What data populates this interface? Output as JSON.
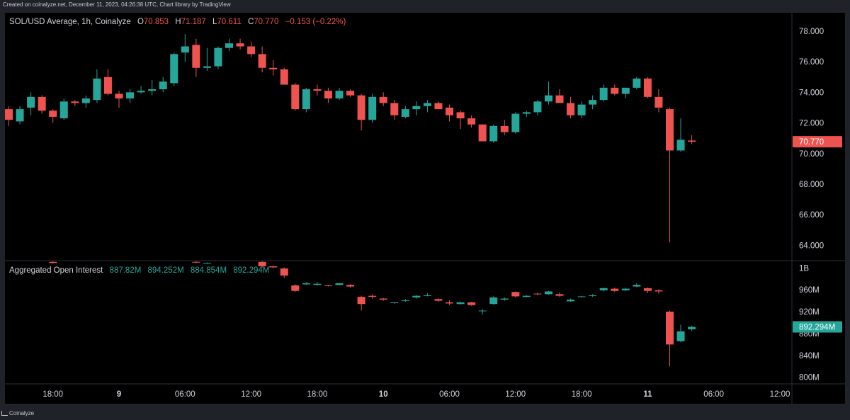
{
  "caption": "Created on coinalyze.net, December 11, 2023, 04:26:38 UTC, Chart library by TradingView",
  "brand": "Coinalyze",
  "colors": {
    "up": "#26a69a",
    "down": "#ef5350",
    "background": "#000000",
    "text": "#d1d4dc"
  },
  "price_legend": {
    "title": "SOL/USD Average, 1h, Coinalyze",
    "o_label": "O",
    "o_value": "70.853",
    "h_label": "H",
    "h_value": "71.187",
    "l_label": "L",
    "l_value": "70.611",
    "c_label": "C",
    "c_value": "70.770",
    "change": "−0.153 (−0.22%)"
  },
  "oi_legend": {
    "title": "Aggregated Open Interest",
    "v1": "887.82M",
    "v2": "894.252M",
    "v3": "884.854M",
    "v4": "892.294M"
  },
  "chart_data": [
    {
      "type": "candlestick",
      "title": "SOL/USD Average, 1h, Coinalyze",
      "y_ticks": [
        "78.000",
        "76.000",
        "74.000",
        "72.000",
        "70.000",
        "68.000",
        "66.000",
        "64.000"
      ],
      "y_tick_values": [
        78,
        76,
        74,
        72,
        70,
        68,
        66,
        64
      ],
      "ylim": [
        63.0,
        79.2
      ],
      "last_price_label": "70.770",
      "last_price": 70.77,
      "candles": [
        {
          "o": 72.9,
          "h": 73.1,
          "l": 71.8,
          "c": 72.2
        },
        {
          "o": 72.1,
          "h": 73.1,
          "l": 71.9,
          "c": 72.9
        },
        {
          "o": 73.0,
          "h": 74.0,
          "l": 72.5,
          "c": 73.7
        },
        {
          "o": 73.7,
          "h": 73.8,
          "l": 72.6,
          "c": 72.8
        },
        {
          "o": 72.8,
          "h": 72.9,
          "l": 72.0,
          "c": 72.4
        },
        {
          "o": 72.3,
          "h": 73.6,
          "l": 72.2,
          "c": 73.4
        },
        {
          "o": 73.4,
          "h": 73.5,
          "l": 73.1,
          "c": 73.3
        },
        {
          "o": 73.3,
          "h": 73.8,
          "l": 73.0,
          "c": 73.6
        },
        {
          "o": 73.5,
          "h": 75.5,
          "l": 73.3,
          "c": 74.9
        },
        {
          "o": 75.0,
          "h": 75.5,
          "l": 73.8,
          "c": 73.9
        },
        {
          "o": 73.9,
          "h": 74.1,
          "l": 73.0,
          "c": 73.6
        },
        {
          "o": 73.6,
          "h": 74.2,
          "l": 73.3,
          "c": 74.0
        },
        {
          "o": 74.0,
          "h": 74.4,
          "l": 73.9,
          "c": 74.1
        },
        {
          "o": 74.1,
          "h": 74.8,
          "l": 73.8,
          "c": 74.2
        },
        {
          "o": 74.2,
          "h": 75.0,
          "l": 74.0,
          "c": 74.7
        },
        {
          "o": 74.6,
          "h": 76.6,
          "l": 74.4,
          "c": 76.5
        },
        {
          "o": 76.6,
          "h": 77.8,
          "l": 76.0,
          "c": 77.0
        },
        {
          "o": 77.1,
          "h": 77.5,
          "l": 75.0,
          "c": 75.6
        },
        {
          "o": 75.6,
          "h": 76.9,
          "l": 75.4,
          "c": 75.7
        },
        {
          "o": 75.7,
          "h": 77.0,
          "l": 75.5,
          "c": 76.9
        },
        {
          "o": 76.9,
          "h": 77.5,
          "l": 76.7,
          "c": 77.2
        },
        {
          "o": 77.2,
          "h": 77.5,
          "l": 76.8,
          "c": 77.0
        },
        {
          "o": 77.0,
          "h": 77.3,
          "l": 76.3,
          "c": 76.5
        },
        {
          "o": 76.5,
          "h": 77.0,
          "l": 75.3,
          "c": 75.6
        },
        {
          "o": 75.6,
          "h": 76.1,
          "l": 75.1,
          "c": 75.5
        },
        {
          "o": 75.5,
          "h": 75.6,
          "l": 74.6,
          "c": 74.5
        },
        {
          "o": 74.5,
          "h": 74.6,
          "l": 72.8,
          "c": 72.9
        },
        {
          "o": 72.9,
          "h": 74.3,
          "l": 72.7,
          "c": 74.2
        },
        {
          "o": 74.2,
          "h": 74.5,
          "l": 73.8,
          "c": 74.1
        },
        {
          "o": 74.1,
          "h": 74.3,
          "l": 73.3,
          "c": 73.6
        },
        {
          "o": 73.6,
          "h": 74.3,
          "l": 73.5,
          "c": 74.1
        },
        {
          "o": 74.1,
          "h": 74.2,
          "l": 73.7,
          "c": 73.8
        },
        {
          "o": 73.8,
          "h": 73.9,
          "l": 71.5,
          "c": 72.2
        },
        {
          "o": 72.2,
          "h": 73.9,
          "l": 72.0,
          "c": 73.7
        },
        {
          "o": 73.7,
          "h": 74.0,
          "l": 73.1,
          "c": 73.3
        },
        {
          "o": 73.3,
          "h": 73.5,
          "l": 72.2,
          "c": 72.5
        },
        {
          "o": 72.4,
          "h": 73.1,
          "l": 72.3,
          "c": 72.9
        },
        {
          "o": 72.9,
          "h": 73.4,
          "l": 72.5,
          "c": 73.1
        },
        {
          "o": 73.1,
          "h": 73.5,
          "l": 72.7,
          "c": 73.3
        },
        {
          "o": 73.3,
          "h": 73.4,
          "l": 72.9,
          "c": 72.9
        },
        {
          "o": 73.0,
          "h": 73.2,
          "l": 72.1,
          "c": 72.5
        },
        {
          "o": 72.7,
          "h": 72.8,
          "l": 71.6,
          "c": 72.3
        },
        {
          "o": 72.3,
          "h": 72.5,
          "l": 71.7,
          "c": 71.9
        },
        {
          "o": 71.9,
          "h": 71.9,
          "l": 70.8,
          "c": 70.8
        },
        {
          "o": 70.8,
          "h": 71.9,
          "l": 70.7,
          "c": 71.8
        },
        {
          "o": 71.8,
          "h": 72.2,
          "l": 71.2,
          "c": 71.4
        },
        {
          "o": 71.4,
          "h": 72.7,
          "l": 71.3,
          "c": 72.6
        },
        {
          "o": 72.6,
          "h": 72.8,
          "l": 72.4,
          "c": 72.7
        },
        {
          "o": 72.7,
          "h": 73.5,
          "l": 72.5,
          "c": 73.4
        },
        {
          "o": 73.4,
          "h": 74.7,
          "l": 73.2,
          "c": 73.8
        },
        {
          "o": 73.8,
          "h": 74.2,
          "l": 73.3,
          "c": 73.3
        },
        {
          "o": 73.3,
          "h": 73.7,
          "l": 72.3,
          "c": 72.5
        },
        {
          "o": 72.5,
          "h": 73.4,
          "l": 72.3,
          "c": 73.2
        },
        {
          "o": 73.2,
          "h": 73.8,
          "l": 72.9,
          "c": 73.5
        },
        {
          "o": 73.5,
          "h": 74.5,
          "l": 73.4,
          "c": 74.3
        },
        {
          "o": 74.3,
          "h": 74.5,
          "l": 73.8,
          "c": 73.9
        },
        {
          "o": 73.9,
          "h": 74.3,
          "l": 73.6,
          "c": 74.3
        },
        {
          "o": 74.3,
          "h": 75.0,
          "l": 74.2,
          "c": 74.9
        },
        {
          "o": 74.9,
          "h": 75.0,
          "l": 73.6,
          "c": 73.7
        },
        {
          "o": 73.7,
          "h": 74.2,
          "l": 72.7,
          "c": 73.0
        },
        {
          "o": 72.9,
          "h": 73.0,
          "l": 64.2,
          "c": 70.2
        },
        {
          "o": 70.2,
          "h": 72.3,
          "l": 70.1,
          "c": 70.9
        },
        {
          "o": 70.85,
          "h": 71.19,
          "l": 70.61,
          "c": 70.77
        }
      ]
    },
    {
      "type": "candlestick",
      "title": "Aggregated Open Interest",
      "y_ticks": [
        "1B",
        "960M",
        "920M",
        "880M",
        "840M",
        "800M"
      ],
      "y_tick_values": [
        1000,
        960,
        920,
        880,
        840,
        800
      ],
      "ylim": [
        788,
        1012
      ],
      "last_value_label": "892.294M",
      "last_value": 892.294,
      "candles": [
        {
          "i": 4,
          "o": 1011,
          "h": 1012,
          "l": 1008,
          "c": 1009
        },
        {
          "i": 17,
          "o": 1011,
          "h": 1012,
          "l": 1009,
          "c": 1010
        },
        {
          "i": 18,
          "o": 1009,
          "h": 1010,
          "l": 1008,
          "c": 1009
        },
        {
          "i": 23,
          "o": 1011,
          "h": 1012,
          "l": 1001,
          "c": 1003
        },
        {
          "i": 24,
          "o": 1003,
          "h": 1004,
          "l": 1000,
          "c": 1001
        },
        {
          "i": 25,
          "o": 999,
          "h": 1001,
          "l": 982,
          "c": 986
        },
        {
          "i": 26,
          "o": 968,
          "h": 970,
          "l": 956,
          "c": 958
        },
        {
          "i": 27,
          "o": 970,
          "h": 974,
          "l": 969,
          "c": 972
        },
        {
          "i": 28,
          "o": 969,
          "h": 974,
          "l": 968,
          "c": 971
        },
        {
          "i": 29,
          "o": 968,
          "h": 969,
          "l": 966,
          "c": 967
        },
        {
          "i": 30,
          "o": 969,
          "h": 972,
          "l": 968,
          "c": 972
        },
        {
          "i": 31,
          "o": 969,
          "h": 970,
          "l": 964,
          "c": 966
        },
        {
          "i": 32,
          "o": 947,
          "h": 949,
          "l": 922,
          "c": 934
        },
        {
          "i": 33,
          "o": 949,
          "h": 951,
          "l": 944,
          "c": 947
        },
        {
          "i": 34,
          "o": 944,
          "h": 945,
          "l": 940,
          "c": 942
        },
        {
          "i": 35,
          "o": 936,
          "h": 937,
          "l": 934,
          "c": 937
        },
        {
          "i": 36,
          "o": 940,
          "h": 943,
          "l": 938,
          "c": 941
        },
        {
          "i": 37,
          "o": 946,
          "h": 950,
          "l": 944,
          "c": 949
        },
        {
          "i": 38,
          "o": 949,
          "h": 954,
          "l": 948,
          "c": 950
        },
        {
          "i": 39,
          "o": 943,
          "h": 944,
          "l": 938,
          "c": 940
        },
        {
          "i": 40,
          "o": 937,
          "h": 941,
          "l": 932,
          "c": 935
        },
        {
          "i": 41,
          "o": 934,
          "h": 938,
          "l": 933,
          "c": 937
        },
        {
          "i": 42,
          "o": 937,
          "h": 938,
          "l": 931,
          "c": 932
        },
        {
          "i": 43,
          "o": 921,
          "h": 925,
          "l": 915,
          "c": 922
        },
        {
          "i": 44,
          "o": 934,
          "h": 948,
          "l": 933,
          "c": 946
        },
        {
          "i": 45,
          "o": 942,
          "h": 946,
          "l": 940,
          "c": 944
        },
        {
          "i": 46,
          "o": 956,
          "h": 957,
          "l": 946,
          "c": 948
        },
        {
          "i": 47,
          "o": 947,
          "h": 950,
          "l": 946,
          "c": 949
        },
        {
          "i": 48,
          "o": 953,
          "h": 955,
          "l": 950,
          "c": 952
        },
        {
          "i": 49,
          "o": 952,
          "h": 958,
          "l": 951,
          "c": 957
        },
        {
          "i": 50,
          "o": 952,
          "h": 955,
          "l": 947,
          "c": 949
        },
        {
          "i": 51,
          "o": 939,
          "h": 944,
          "l": 938,
          "c": 942
        },
        {
          "i": 52,
          "o": 947,
          "h": 949,
          "l": 946,
          "c": 948
        },
        {
          "i": 53,
          "o": 949,
          "h": 952,
          "l": 947,
          "c": 950
        },
        {
          "i": 54,
          "o": 959,
          "h": 964,
          "l": 957,
          "c": 963
        },
        {
          "i": 55,
          "o": 962,
          "h": 964,
          "l": 956,
          "c": 958
        },
        {
          "i": 56,
          "o": 959,
          "h": 964,
          "l": 958,
          "c": 962
        },
        {
          "i": 57,
          "o": 966,
          "h": 972,
          "l": 965,
          "c": 969
        },
        {
          "i": 58,
          "o": 963,
          "h": 964,
          "l": 954,
          "c": 958
        },
        {
          "i": 59,
          "o": 959,
          "h": 961,
          "l": 953,
          "c": 957
        },
        {
          "i": 60,
          "o": 920,
          "h": 922,
          "l": 820,
          "c": 860
        },
        {
          "i": 61,
          "o": 866,
          "h": 896,
          "l": 864,
          "c": 884
        },
        {
          "i": 62,
          "o": 887.82,
          "h": 894.252,
          "l": 884.854,
          "c": 892.294
        }
      ]
    }
  ],
  "x_axis": {
    "ticks": [
      "18:00",
      "9",
      "06:00",
      "12:00",
      "18:00",
      "10",
      "06:00",
      "12:00",
      "18:00",
      "11",
      "06:00",
      "12:00"
    ],
    "bold": [
      false,
      true,
      false,
      false,
      false,
      true,
      false,
      false,
      false,
      true,
      false,
      false
    ],
    "bar_index": [
      4,
      10,
      16,
      22,
      28,
      34,
      40,
      46,
      52,
      58,
      64,
      70
    ]
  }
}
